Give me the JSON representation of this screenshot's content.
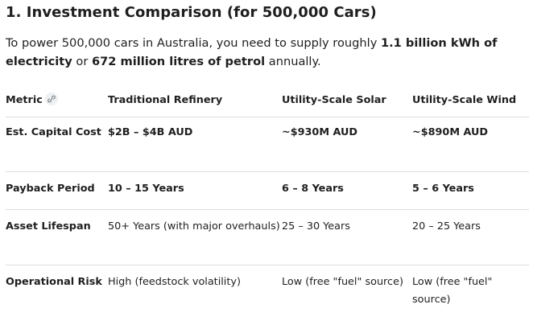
{
  "heading": "1. Investment Comparison (for 500,000 Cars)",
  "intro": {
    "part1": "To power 500,000 cars in Australia, you need to supply roughly ",
    "energy": "1.1 billion kWh of electricity",
    "part2": " or ",
    "petrol": "672 million litres of petrol",
    "part3": " annually."
  },
  "table": {
    "headers": [
      "Metric",
      "Traditional Refinery",
      "Utility-Scale Solar",
      "Utility-Scale Wind"
    ],
    "link_icon": "link-icon",
    "rows": [
      {
        "metric": "Est. Capital Cost",
        "refinery": "$2B – $4B AUD",
        "solar": "~$930M AUD",
        "wind": "~$890M AUD"
      },
      {
        "metric": "Payback Period",
        "refinery": "10 – 15 Years",
        "solar": "6 – 8 Years",
        "wind": "5 – 6 Years"
      },
      {
        "metric": "Asset Lifespan",
        "refinery": "50+ Years (with major overhauls)",
        "solar": "25 – 30 Years",
        "wind": "20 – 25 Years"
      },
      {
        "metric": "Operational Risk",
        "refinery": "High (feedstock volatility)",
        "solar": "Low (free \"fuel\" source)",
        "wind": "Low (free \"fuel\" source)"
      }
    ]
  }
}
